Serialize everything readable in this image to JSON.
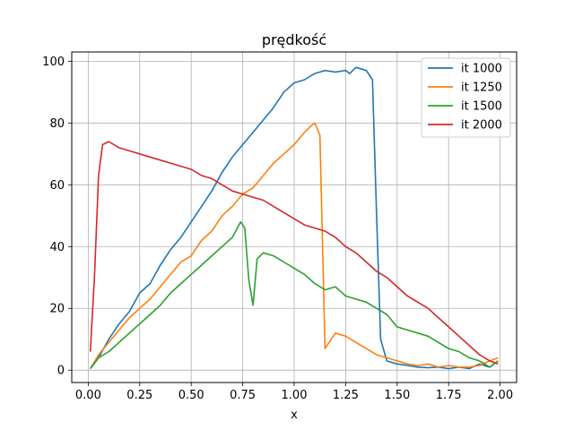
{
  "chart_data": {
    "type": "line",
    "title": "prędkość",
    "xlabel": "x",
    "ylabel": "",
    "xlim": [
      -0.08,
      2.08
    ],
    "ylim": [
      -4,
      103
    ],
    "xticks": [
      0.0,
      0.25,
      0.5,
      0.75,
      1.0,
      1.25,
      1.5,
      1.75,
      2.0
    ],
    "xtick_labels": [
      "0.00",
      "0.25",
      "0.50",
      "0.75",
      "1.00",
      "1.25",
      "1.50",
      "1.75",
      "2.00"
    ],
    "yticks": [
      0,
      20,
      40,
      60,
      80,
      100
    ],
    "ytick_labels": [
      "0",
      "20",
      "40",
      "60",
      "80",
      "100"
    ],
    "grid": true,
    "legend_position": "top-right",
    "series": [
      {
        "name": "it 1000",
        "color": "#1f77b4",
        "x": [
          0.01,
          0.05,
          0.1,
          0.15,
          0.2,
          0.25,
          0.3,
          0.35,
          0.4,
          0.45,
          0.5,
          0.55,
          0.6,
          0.65,
          0.7,
          0.75,
          0.8,
          0.85,
          0.9,
          0.95,
          1.0,
          1.05,
          1.1,
          1.15,
          1.2,
          1.25,
          1.27,
          1.3,
          1.35,
          1.38,
          1.4,
          1.42,
          1.45,
          1.5,
          1.55,
          1.6,
          1.65,
          1.7,
          1.75,
          1.8,
          1.85,
          1.9,
          1.95,
          1.99
        ],
        "y": [
          0.5,
          4,
          10,
          15,
          19,
          25,
          28,
          34,
          39,
          43,
          48,
          53,
          58,
          64,
          69,
          73,
          77,
          81,
          85,
          90,
          93,
          94,
          96,
          97,
          96.5,
          97,
          96,
          98,
          97,
          94,
          50,
          10,
          3,
          2,
          1.5,
          1,
          0.8,
          1,
          0.5,
          1,
          0.5,
          2,
          1,
          3
        ]
      },
      {
        "name": "it 1250",
        "color": "#ff7f0e",
        "x": [
          0.01,
          0.05,
          0.1,
          0.15,
          0.2,
          0.25,
          0.3,
          0.35,
          0.4,
          0.45,
          0.5,
          0.55,
          0.6,
          0.65,
          0.7,
          0.75,
          0.8,
          0.85,
          0.9,
          0.95,
          1.0,
          1.05,
          1.08,
          1.1,
          1.125,
          1.15,
          1.2,
          1.25,
          1.3,
          1.35,
          1.4,
          1.45,
          1.5,
          1.55,
          1.6,
          1.65,
          1.7,
          1.75,
          1.8,
          1.85,
          1.9,
          1.95,
          1.99
        ],
        "y": [
          0.5,
          5,
          9,
          13,
          17,
          20,
          23,
          27,
          31,
          35,
          37,
          42,
          45,
          50,
          53,
          57,
          59,
          63,
          67,
          70,
          73,
          77,
          79,
          80,
          76,
          7,
          12,
          11,
          9,
          7,
          5,
          4,
          3,
          2,
          1.5,
          2,
          1,
          1.5,
          1,
          1,
          1.5,
          3,
          4
        ]
      },
      {
        "name": "it 1500",
        "color": "#2ca02c",
        "x": [
          0.01,
          0.05,
          0.1,
          0.15,
          0.2,
          0.25,
          0.3,
          0.35,
          0.4,
          0.45,
          0.5,
          0.55,
          0.6,
          0.65,
          0.7,
          0.74,
          0.76,
          0.78,
          0.8,
          0.82,
          0.85,
          0.9,
          0.95,
          1.0,
          1.05,
          1.1,
          1.15,
          1.2,
          1.25,
          1.3,
          1.35,
          1.4,
          1.45,
          1.5,
          1.55,
          1.6,
          1.65,
          1.7,
          1.75,
          1.8,
          1.85,
          1.9,
          1.95,
          1.99
        ],
        "y": [
          0.5,
          4,
          6,
          9,
          12,
          15,
          18,
          21,
          25,
          28,
          31,
          34,
          37,
          40,
          43,
          48,
          46,
          29,
          21,
          36,
          38,
          37,
          35,
          33,
          31,
          28,
          26,
          27,
          24,
          23,
          22,
          20,
          18,
          14,
          13,
          12,
          11,
          9,
          7,
          6,
          4,
          3,
          1,
          3
        ]
      },
      {
        "name": "it 2000",
        "color": "#d62728",
        "x": [
          0.01,
          0.03,
          0.05,
          0.07,
          0.1,
          0.15,
          0.2,
          0.25,
          0.3,
          0.35,
          0.4,
          0.45,
          0.5,
          0.55,
          0.6,
          0.65,
          0.7,
          0.75,
          0.8,
          0.85,
          0.9,
          0.95,
          1.0,
          1.05,
          1.1,
          1.15,
          1.2,
          1.25,
          1.3,
          1.35,
          1.4,
          1.45,
          1.5,
          1.55,
          1.6,
          1.65,
          1.7,
          1.75,
          1.8,
          1.85,
          1.9,
          1.95,
          1.99
        ],
        "y": [
          6,
          30,
          63,
          73,
          74,
          72,
          71,
          70,
          69,
          68,
          67,
          66,
          65,
          63,
          62,
          60,
          58,
          57,
          56,
          55,
          53,
          51,
          49,
          47,
          46,
          45,
          43,
          40,
          38,
          35,
          32,
          30,
          27,
          24,
          22,
          20,
          17,
          14,
          11,
          8,
          5,
          3,
          2
        ]
      }
    ]
  }
}
